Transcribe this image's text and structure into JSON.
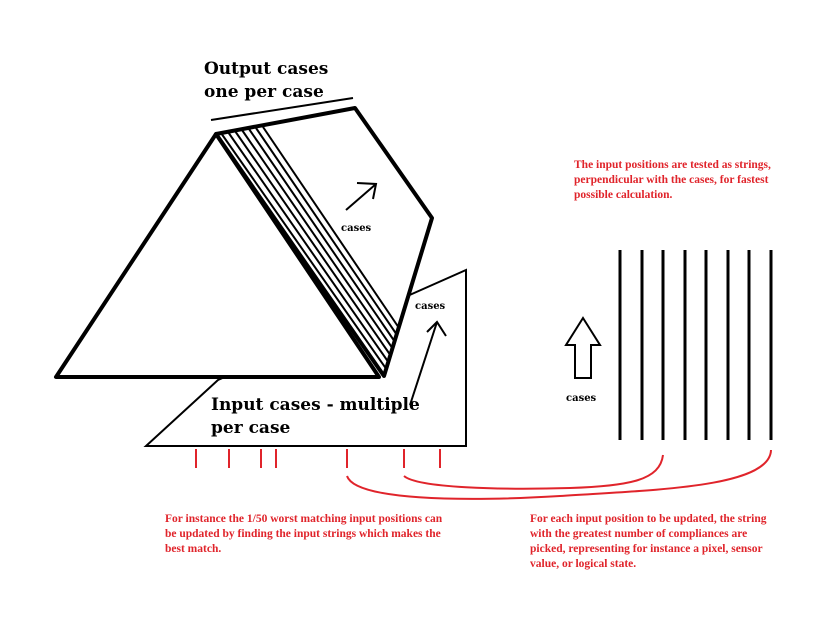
{
  "labels": {
    "output_line1": "Output cases",
    "output_line2": "one per case",
    "input_line1": "Input cases - multiple",
    "input_line2": "per case",
    "cases_prism": "cases",
    "cases_plate": "cases",
    "cases_strings": "cases"
  },
  "notes": {
    "top_right": "The input positions are tested as strings,\nperpendicular with the cases, for fastest\npossible calculation.",
    "bottom_left": "For instance the 1/50 worst matching input positions can\nbe updated by finding the input strings which makes the\nbest match.",
    "bottom_right": "For each input position to be updated, the string\nwith the greatest number of compliances are\npicked, representing for instance a pixel, sensor\nvalue, or logical state."
  },
  "colors": {
    "ink": "#000000",
    "accent": "#e0242b"
  }
}
